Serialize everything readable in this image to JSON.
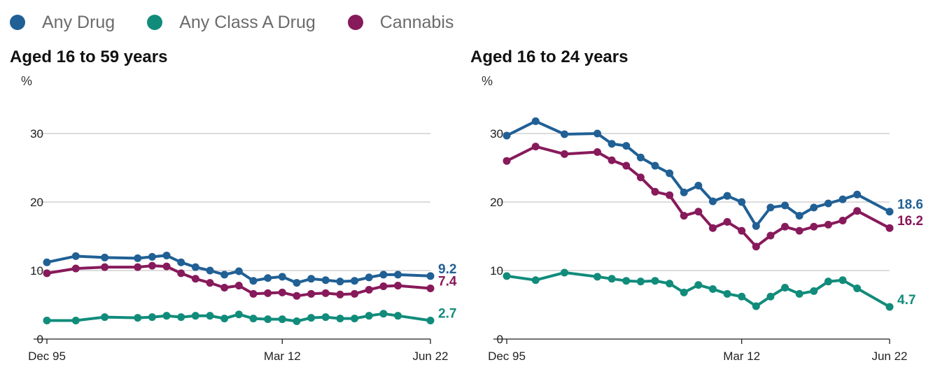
{
  "legend": [
    {
      "name": "Any Drug",
      "color": "#206095"
    },
    {
      "name": "Any Class A Drug",
      "color": "#118c7b"
    },
    {
      "name": "Cannabis",
      "color": "#871a5b"
    }
  ],
  "chart_data": [
    {
      "type": "line",
      "title": "Aged 16 to 59 years",
      "ylabel": "%",
      "ylim": [
        0,
        30
      ],
      "yticks": [
        "0",
        "10",
        "20",
        "30"
      ],
      "xticks": [
        "Dec 95",
        "Mar 12",
        "Jun 22"
      ],
      "grid": true,
      "x": [
        1995.92,
        1997.92,
        1999.92,
        2002.2,
        2003.2,
        2004.2,
        2005.2,
        2006.2,
        2007.2,
        2008.2,
        2009.2,
        2010.2,
        2011.2,
        2012.2,
        2013.2,
        2014.2,
        2015.2,
        2016.2,
        2017.2,
        2018.2,
        2019.2,
        2020.2,
        2022.45
      ],
      "series": [
        {
          "name": "Any Drug",
          "color": "#206095",
          "end_label": "9.2",
          "values": [
            11.2,
            12.1,
            11.9,
            11.8,
            12.0,
            12.2,
            11.2,
            10.5,
            10.0,
            9.4,
            9.9,
            8.5,
            8.9,
            9.1,
            8.2,
            8.8,
            8.6,
            8.4,
            8.5,
            9.0,
            9.4,
            9.4,
            9.2
          ]
        },
        {
          "name": "Cannabis",
          "color": "#871a5b",
          "end_label": "7.4",
          "values": [
            9.6,
            10.3,
            10.5,
            10.5,
            10.7,
            10.6,
            9.6,
            8.8,
            8.2,
            7.5,
            7.8,
            6.6,
            6.7,
            6.8,
            6.3,
            6.6,
            6.7,
            6.5,
            6.6,
            7.2,
            7.7,
            7.8,
            7.4
          ]
        },
        {
          "name": "Any Class A Drug",
          "color": "#118c7b",
          "end_label": "2.7",
          "values": [
            2.7,
            2.7,
            3.2,
            3.1,
            3.2,
            3.4,
            3.2,
            3.4,
            3.4,
            3.0,
            3.6,
            3.0,
            2.9,
            2.9,
            2.6,
            3.1,
            3.2,
            3.0,
            3.0,
            3.4,
            3.7,
            3.4,
            2.7
          ]
        }
      ]
    },
    {
      "type": "line",
      "title": "Aged 16 to 24 years",
      "ylabel": "%",
      "ylim": [
        0,
        30
      ],
      "yticks": [
        "0",
        "10",
        "20",
        "30"
      ],
      "xticks": [
        "Dec 95",
        "Mar 12",
        "Jun 22"
      ],
      "grid": true,
      "x": [
        1995.92,
        1997.92,
        1999.92,
        2002.2,
        2003.2,
        2004.2,
        2005.2,
        2006.2,
        2007.2,
        2008.2,
        2009.2,
        2010.2,
        2011.2,
        2012.2,
        2013.2,
        2014.2,
        2015.2,
        2016.2,
        2017.2,
        2018.2,
        2019.2,
        2020.2,
        2022.45
      ],
      "series": [
        {
          "name": "Any Drug",
          "color": "#206095",
          "end_label": "18.6",
          "values": [
            29.7,
            31.8,
            29.9,
            30.0,
            28.5,
            28.2,
            26.5,
            25.3,
            24.2,
            21.4,
            22.4,
            20.1,
            20.9,
            20.0,
            16.5,
            19.2,
            19.5,
            18.0,
            19.2,
            19.8,
            20.4,
            21.1,
            18.6
          ]
        },
        {
          "name": "Cannabis",
          "color": "#871a5b",
          "end_label": "16.2",
          "values": [
            26.0,
            28.1,
            27.0,
            27.3,
            26.1,
            25.3,
            23.6,
            21.5,
            21.0,
            18.0,
            18.6,
            16.2,
            17.1,
            15.8,
            13.5,
            15.1,
            16.4,
            15.8,
            16.4,
            16.7,
            17.3,
            18.7,
            16.2
          ]
        },
        {
          "name": "Any Class A Drug",
          "color": "#118c7b",
          "end_label": "4.7",
          "values": [
            9.2,
            8.6,
            9.7,
            9.1,
            8.8,
            8.5,
            8.4,
            8.5,
            8.1,
            6.8,
            7.9,
            7.3,
            6.6,
            6.2,
            4.8,
            6.2,
            7.5,
            6.6,
            7.0,
            8.4,
            8.6,
            7.4,
            4.7
          ]
        }
      ]
    }
  ]
}
